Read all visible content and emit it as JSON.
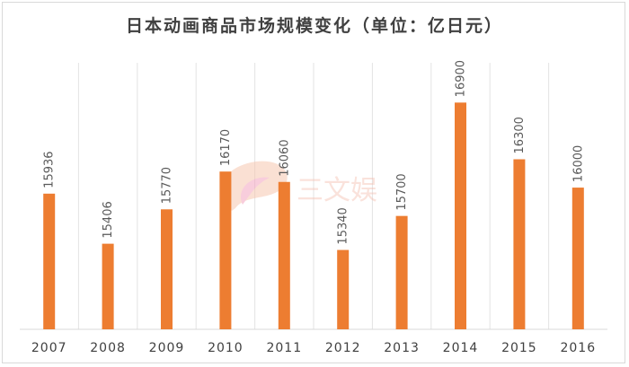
{
  "chart_data": {
    "type": "bar",
    "title": "日本动画商品市场规模变化（单位：亿日元）",
    "categories": [
      "2007",
      "2008",
      "2009",
      "2010",
      "2011",
      "2012",
      "2013",
      "2014",
      "2015",
      "2016"
    ],
    "values": [
      15936,
      15406,
      15770,
      16170,
      16060,
      15340,
      15700,
      16900,
      16300,
      16000
    ],
    "xlabel": "",
    "ylabel": "",
    "ylim": [
      14500,
      17150
    ],
    "grid": "vertical-separators",
    "bar_color": "#ED7D31",
    "data_labels": true
  },
  "watermark": {
    "text": "三文娱",
    "color": "#f2b8a8"
  }
}
